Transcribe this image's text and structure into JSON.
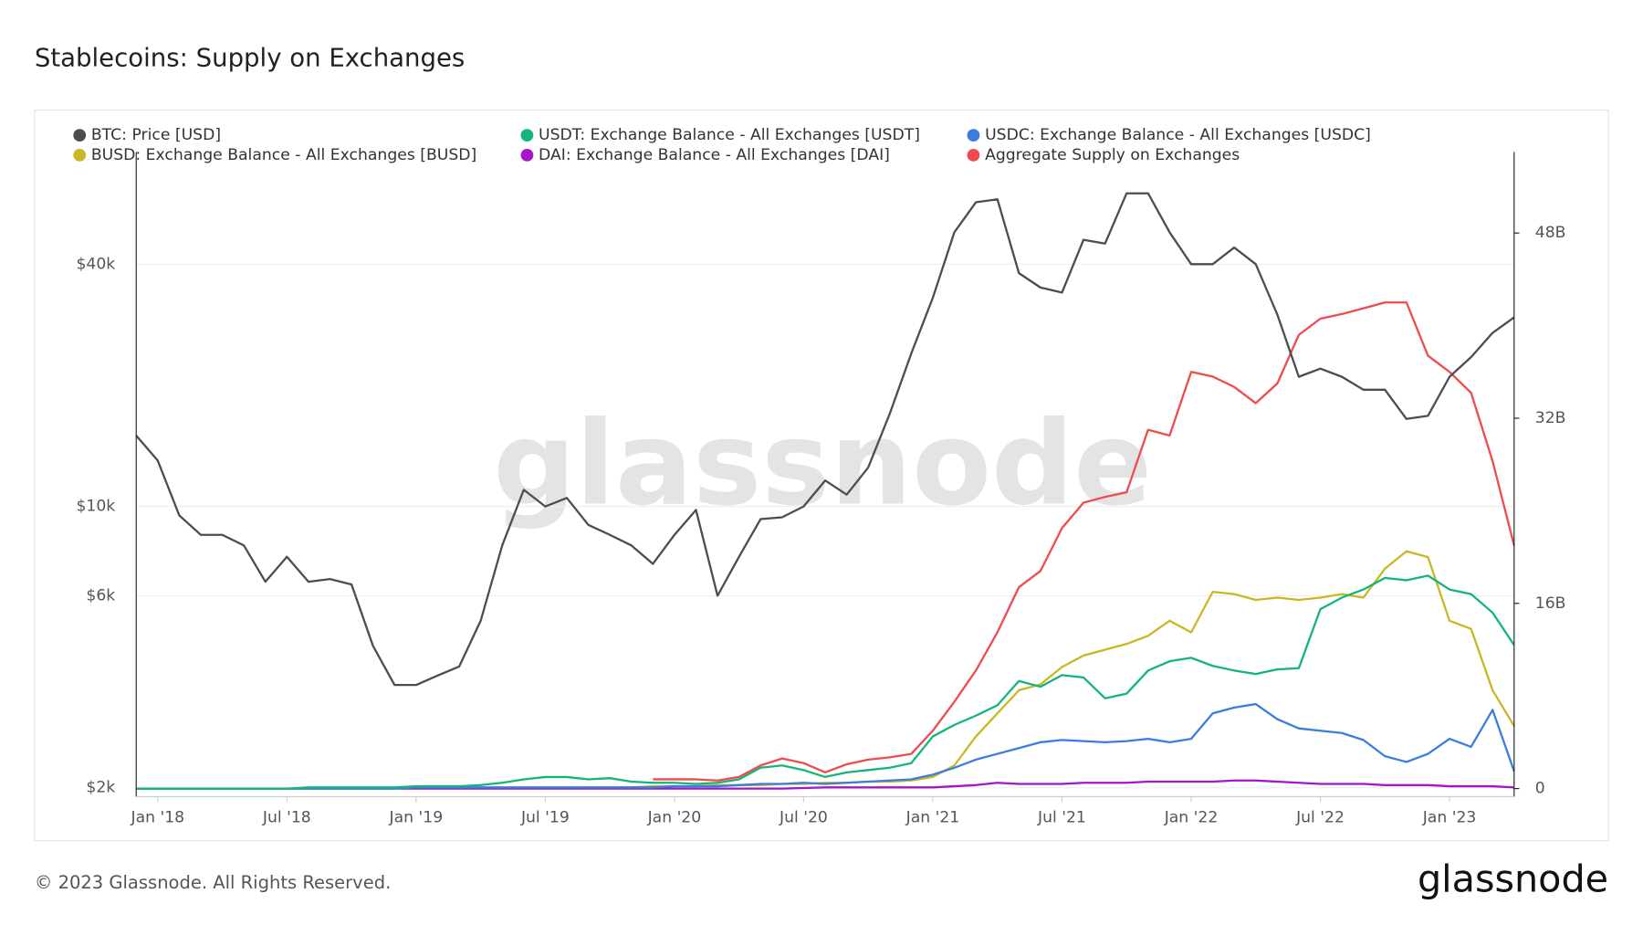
{
  "chart_data": {
    "type": "line",
    "title": "Stablecoins: Supply on Exchanges",
    "watermark": "glassnode",
    "log_scale_y": true,
    "grid": true,
    "x": [
      "2017-12",
      "2018-01",
      "2018-02",
      "2018-03",
      "2018-04",
      "2018-05",
      "2018-06",
      "2018-07",
      "2018-08",
      "2018-09",
      "2018-10",
      "2018-11",
      "2018-12",
      "2019-01",
      "2019-02",
      "2019-03",
      "2019-04",
      "2019-05",
      "2019-06",
      "2019-07",
      "2019-08",
      "2019-09",
      "2019-10",
      "2019-11",
      "2019-12",
      "2020-01",
      "2020-02",
      "2020-03",
      "2020-04",
      "2020-05",
      "2020-06",
      "2020-07",
      "2020-08",
      "2020-09",
      "2020-10",
      "2020-11",
      "2020-12",
      "2021-01",
      "2021-02",
      "2021-03",
      "2021-04",
      "2021-05",
      "2021-06",
      "2021-07",
      "2021-08",
      "2021-09",
      "2021-10",
      "2021-11",
      "2021-12",
      "2022-01",
      "2022-02",
      "2022-03",
      "2022-04",
      "2022-05",
      "2022-06",
      "2022-07",
      "2022-08",
      "2022-09",
      "2022-10",
      "2022-11",
      "2022-12",
      "2023-01",
      "2023-02",
      "2023-03",
      "2023-04"
    ],
    "xlim": [
      "2017-12",
      "2023-04"
    ],
    "xticks": [
      {
        "value": "2018-01",
        "label": "Jan '18"
      },
      {
        "value": "2018-07",
        "label": "Jul '18"
      },
      {
        "value": "2019-01",
        "label": "Jan '19"
      },
      {
        "value": "2019-07",
        "label": "Jul '19"
      },
      {
        "value": "2020-01",
        "label": "Jan '20"
      },
      {
        "value": "2020-07",
        "label": "Jul '20"
      },
      {
        "value": "2021-01",
        "label": "Jan '21"
      },
      {
        "value": "2021-07",
        "label": "Jul '21"
      },
      {
        "value": "2022-01",
        "label": "Jan '22"
      },
      {
        "value": "2022-07",
        "label": "Jul '22"
      },
      {
        "value": "2023-01",
        "label": "Jan '23"
      }
    ],
    "ylim": [
      1900,
      76000
    ],
    "yticks": [
      {
        "value": 2000,
        "label": "$2k"
      },
      {
        "value": 6000,
        "label": "$6k"
      },
      {
        "value": 10000,
        "label": "$10k"
      },
      {
        "value": 40000,
        "label": "$40k"
      }
    ],
    "y2lim": [
      -0.7,
      55
    ],
    "y2ticks": [
      0,
      {
        "value": 16,
        "label": "16B"
      },
      {
        "value": 32,
        "label": "32B"
      },
      {
        "value": 48,
        "label": "48B"
      }
    ],
    "series": [
      {
        "name": "BTC: Price [USD]",
        "color": "#4d4d4d",
        "values": [
          15000,
          13000,
          9500,
          8500,
          8500,
          8000,
          6500,
          7500,
          6500,
          6600,
          6400,
          4500,
          3600,
          3600,
          3800,
          4000,
          5200,
          8000,
          11000,
          10000,
          10500,
          9000,
          8500,
          8000,
          7200,
          8500,
          9800,
          6000,
          7500,
          9300,
          9400,
          10000,
          11600,
          10700,
          12500,
          17000,
          24000,
          33000,
          48000,
          57000,
          58000,
          38000,
          35000,
          34000,
          46000,
          45000,
          60000,
          60000,
          48000,
          40000,
          40000,
          44000,
          40000,
          30000,
          21000,
          22000,
          21000,
          19500,
          19500,
          16500,
          16800,
          21000,
          23500,
          27000,
          29500
        ]
      },
      {
        "name": "USDT: Exchange Balance - All Exchanges [USDT]",
        "color": "#14b47a",
        "axis": "y2",
        "values": [
          0,
          0,
          0,
          0,
          0,
          0,
          0,
          0,
          0.1,
          0.1,
          0.1,
          0.1,
          0.1,
          0.2,
          0.2,
          0.2,
          0.3,
          0.5,
          0.8,
          1.0,
          1.0,
          0.8,
          0.9,
          0.6,
          0.5,
          0.5,
          0.4,
          0.5,
          0.8,
          1.8,
          2.0,
          1.6,
          1.0,
          1.4,
          1.6,
          1.8,
          2.2,
          4.5,
          5.5,
          6.3,
          7.2,
          9.3,
          8.8,
          9.8,
          9.6,
          7.8,
          8.2,
          10.2,
          11.0,
          11.3,
          10.6,
          10.2,
          9.9,
          10.3,
          10.4,
          15.5,
          16.5,
          17.2,
          18.2,
          18.0,
          18.4,
          17.2,
          16.8,
          15.2,
          12.4
        ]
      },
      {
        "name": "USDC: Exchange Balance - All Exchanges [USDC]",
        "color": "#3b7ddd",
        "axis": "y2",
        "values": [
          0,
          0,
          0,
          0,
          0,
          0,
          0,
          0,
          0,
          0,
          0,
          0,
          0,
          0.1,
          0.1,
          0.1,
          0.1,
          0.1,
          0.1,
          0.1,
          0.1,
          0.1,
          0.1,
          0.1,
          0.1,
          0.2,
          0.2,
          0.2,
          0.3,
          0.4,
          0.4,
          0.5,
          0.4,
          0.5,
          0.6,
          0.7,
          0.8,
          1.2,
          1.8,
          2.5,
          3.0,
          3.5,
          4.0,
          4.2,
          4.1,
          4.0,
          4.1,
          4.3,
          4.0,
          4.3,
          6.5,
          7.0,
          7.3,
          6.0,
          5.2,
          5.0,
          4.8,
          4.2,
          2.8,
          2.3,
          3.0,
          4.3,
          3.6,
          6.8,
          1.5
        ]
      },
      {
        "name": "BUSD: Exchange Balance - All Exchanges [BUSD]",
        "color": "#c9b823",
        "axis": "y2",
        "values": [
          null,
          null,
          null,
          null,
          null,
          null,
          null,
          null,
          null,
          null,
          null,
          null,
          null,
          null,
          null,
          null,
          null,
          null,
          null,
          null,
          null,
          0.1,
          0.1,
          0.1,
          0.2,
          0.2,
          0.2,
          0.3,
          0.3,
          0.3,
          0.4,
          0.4,
          0.5,
          0.5,
          0.6,
          0.6,
          0.7,
          1.0,
          2.0,
          4.5,
          6.5,
          8.5,
          9.0,
          10.5,
          11.5,
          12.0,
          12.5,
          13.2,
          14.5,
          13.5,
          17.0,
          16.8,
          16.3,
          16.5,
          16.3,
          16.5,
          16.8,
          16.5,
          19.0,
          20.5,
          20.0,
          14.5,
          13.8,
          8.5,
          5.4
        ]
      },
      {
        "name": "DAI: Exchange Balance - All Exchanges [DAI]",
        "color": "#a516c6",
        "axis": "y2",
        "values": [
          0,
          0,
          0,
          0,
          0,
          0,
          0,
          0,
          0,
          0,
          0,
          0,
          0,
          0,
          0,
          0,
          0,
          0,
          0,
          0,
          0,
          0,
          0,
          0,
          0,
          0,
          0,
          0,
          0,
          0,
          0,
          0.05,
          0.1,
          0.1,
          0.1,
          0.1,
          0.1,
          0.1,
          0.2,
          0.3,
          0.5,
          0.4,
          0.4,
          0.4,
          0.5,
          0.5,
          0.5,
          0.6,
          0.6,
          0.6,
          0.6,
          0.7,
          0.7,
          0.6,
          0.5,
          0.4,
          0.4,
          0.4,
          0.3,
          0.3,
          0.3,
          0.2,
          0.2,
          0.2,
          0.1
        ]
      },
      {
        "name": "Aggregate Supply on Exchanges",
        "color": "#f04a4f",
        "axis": "y2",
        "values": [
          null,
          null,
          null,
          null,
          null,
          null,
          null,
          null,
          null,
          null,
          null,
          null,
          null,
          null,
          null,
          null,
          null,
          null,
          null,
          null,
          null,
          null,
          null,
          null,
          0.8,
          0.8,
          0.8,
          0.7,
          1.0,
          2.0,
          2.6,
          2.2,
          1.4,
          2.1,
          2.5,
          2.7,
          3.0,
          5.0,
          7.5,
          10.2,
          13.5,
          17.4,
          18.8,
          22.5,
          24.7,
          25.2,
          25.6,
          31.0,
          30.5,
          36.0,
          35.6,
          34.7,
          33.3,
          35.0,
          39.2,
          40.6,
          41.0,
          41.5,
          42.0,
          42.0,
          37.4,
          36.0,
          34.2,
          28.3,
          21.0
        ]
      }
    ]
  },
  "footer": {
    "copyright": "© 2023 Glassnode. All Rights Reserved.",
    "logo": "glassnode"
  }
}
